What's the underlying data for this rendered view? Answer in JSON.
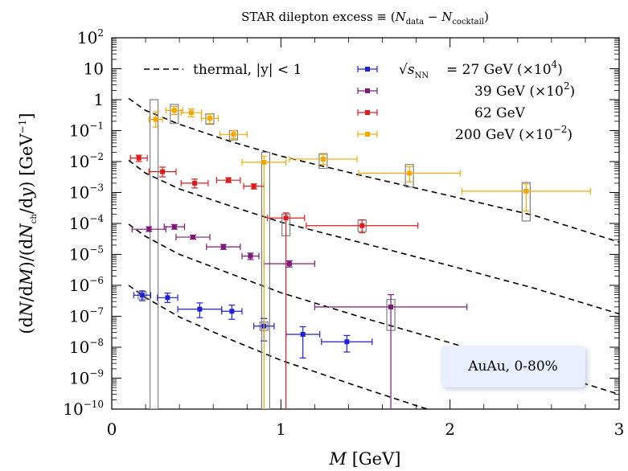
{
  "chart_data": {
    "type": "scatter",
    "title": "STAR dilepton excess ≡ (N",
    "title_parts": {
      "pre": "STAR dilepton excess ≡ (",
      "n1": "N",
      "s1": "data",
      "mid": " − ",
      "n2": "N",
      "s2": "cocktail",
      "post": ")"
    },
    "xlabel": "M  [GeV]",
    "ylabel": "(dN/dM)/(dNch/dy)  [GeV−1]",
    "xlim": [
      0,
      3
    ],
    "ylim_log10": [
      -10,
      2
    ],
    "log_y": true,
    "x_ticks": [
      "0",
      "1",
      "2",
      "3"
    ],
    "y_ticks": [
      "10",
      "1"
    ],
    "y_tick_exponents": [
      "2",
      "",
      "",
      "-1",
      "-2",
      "-3",
      "-4",
      "-5",
      "-6",
      "-7",
      "-8",
      "-9",
      "-10"
    ],
    "legend_position": "top-right",
    "thermal_label": "thermal, |y| < 1",
    "annotation": "AuAu, 0-80%",
    "colors": {
      "27": "#1f1fd6",
      "39": "#7b1a7b",
      "62": "#e01b1b",
      "200": "#f5a700",
      "model": "#000000",
      "box": "#7f7f7f"
    },
    "series": [
      {
        "name": "√sNN = 27 GeV (×10^4)",
        "legend_label": "= 27 GeV (×10",
        "legend_exp": "4",
        "color": "#1f1fd6",
        "points": [
          {
            "x": 0.18,
            "xerr": 0.05,
            "y": 4.8e-07,
            "ylo": 3.2e-07,
            "yhi": 6.6e-07
          },
          {
            "x": 0.33,
            "xerr": 0.06,
            "y": 4e-07,
            "ylo": 2.8e-07,
            "yhi": 5.6e-07
          },
          {
            "x": 0.52,
            "xerr": 0.13,
            "y": 1.7e-07,
            "ylo": 9e-08,
            "yhi": 2.7e-07
          },
          {
            "x": 0.71,
            "xerr": 0.06,
            "y": 1.45e-07,
            "ylo": 8e-08,
            "yhi": 2.3e-07
          },
          {
            "x": 0.9,
            "xerr": 0.06,
            "y": 4.8e-08,
            "ylo": 1.6e-08,
            "yhi": 8.5e-08
          },
          {
            "x": 1.13,
            "xerr": 0.1,
            "y": 2.6e-08,
            "ylo": 4.5e-09,
            "yhi": 4.6e-08
          },
          {
            "x": 1.39,
            "xerr": 0.15,
            "y": 1.5e-08,
            "ylo": 7e-09,
            "yhi": 2.4e-08
          }
        ]
      },
      {
        "name": "39 GeV (×10^2)",
        "legend_label": "39 GeV (×10",
        "legend_exp": "2",
        "color": "#7b1a7b",
        "points": [
          {
            "x": 0.22,
            "xerr": 0.1,
            "y": 6.5e-05,
            "ylo": 5.5e-05,
            "yhi": 7.8e-05
          },
          {
            "x": 0.37,
            "xerr": 0.06,
            "y": 7.8e-05,
            "ylo": 6.5e-05,
            "yhi": 9.2e-05
          },
          {
            "x": 0.48,
            "xerr": 0.1,
            "y": 3.6e-05,
            "ylo": 3.1e-05,
            "yhi": 4.2e-05
          },
          {
            "x": 0.66,
            "xerr": 0.1,
            "y": 1.75e-05,
            "ylo": 1.45e-05,
            "yhi": 2.1e-05
          },
          {
            "x": 0.82,
            "xerr": 0.05,
            "y": 8.8e-06,
            "ylo": 6.8e-06,
            "yhi": 1.1e-05
          },
          {
            "x": 1.05,
            "xerr": 0.15,
            "y": 5e-06,
            "ylo": 3.9e-06,
            "yhi": 6.2e-06
          },
          {
            "x": 1.65,
            "xerr": 0.45,
            "y": 2e-07,
            "ylo": 1e-10,
            "yhi": 5e-07
          }
        ]
      },
      {
        "name": "62 GeV",
        "legend_label": "62 GeV",
        "legend_exp": "",
        "color": "#e01b1b",
        "points": [
          {
            "x": 0.16,
            "xerr": 0.05,
            "y": 0.013,
            "ylo": 0.01,
            "yhi": 0.016
          },
          {
            "x": 0.3,
            "xerr": 0.08,
            "y": 0.0047,
            "ylo": 0.0032,
            "yhi": 0.0066
          },
          {
            "x": 0.49,
            "xerr": 0.08,
            "y": 0.002,
            "ylo": 0.0014,
            "yhi": 0.0027
          },
          {
            "x": 0.69,
            "xerr": 0.07,
            "y": 0.0025,
            "ylo": 0.0021,
            "yhi": 0.003
          },
          {
            "x": 0.84,
            "xerr": 0.06,
            "y": 0.0016,
            "ylo": 0.0013,
            "yhi": 0.0019
          },
          {
            "x": 1.03,
            "xerr": 0.11,
            "y": 0.00015,
            "ylo": 1e-10,
            "yhi": 0.00022
          },
          {
            "x": 1.48,
            "xerr": 0.33,
            "y": 8.5e-05,
            "ylo": 5e-05,
            "yhi": 0.00013
          }
        ]
      },
      {
        "name": "200 GeV (×10^-2)",
        "legend_label": "200 GeV (×10",
        "legend_exp": "−2",
        "color": "#f5a700",
        "points": [
          {
            "x": 0.26,
            "xerr": 0.04,
            "y": 0.23,
            "ylo": 0.13,
            "yhi": 0.4
          },
          {
            "x": 0.37,
            "xerr": 0.05,
            "y": 0.45,
            "ylo": 0.33,
            "yhi": 0.6
          },
          {
            "x": 0.47,
            "xerr": 0.06,
            "y": 0.38,
            "ylo": 0.28,
            "yhi": 0.5
          },
          {
            "x": 0.58,
            "xerr": 0.05,
            "y": 0.25,
            "ylo": 0.17,
            "yhi": 0.34
          },
          {
            "x": 0.72,
            "xerr": 0.08,
            "y": 0.075,
            "ylo": 0.055,
            "yhi": 0.1
          },
          {
            "x": 0.9,
            "xerr": 0.13,
            "y": 0.0095,
            "ylo": 1e-10,
            "yhi": 0.015
          },
          {
            "x": 1.25,
            "xerr": 0.2,
            "y": 0.012,
            "ylo": 0.008,
            "yhi": 0.017
          },
          {
            "x": 1.76,
            "xerr": 0.3,
            "y": 0.0042,
            "ylo": 0.0022,
            "yhi": 0.0068
          },
          {
            "x": 2.45,
            "xerr": 0.38,
            "y": 0.0011,
            "ylo": 0.00025,
            "yhi": 0.0019
          }
        ]
      }
    ],
    "systematic_boxes": [
      {
        "x": 0.25,
        "ylo": 1e-10,
        "yhi": 1.0
      },
      {
        "x": 0.37,
        "ylo": 0.17,
        "yhi": 0.7
      },
      {
        "x": 0.58,
        "ylo": 0.16,
        "yhi": 0.35
      },
      {
        "x": 0.72,
        "ylo": 0.05,
        "yhi": 0.1
      },
      {
        "x": 0.91,
        "ylo": 1e-10,
        "yhi": 0.02
      },
      {
        "x": 1.03,
        "ylo": 4e-05,
        "yhi": 0.0002
      },
      {
        "x": 1.25,
        "ylo": 0.006,
        "yhi": 0.018
      },
      {
        "x": 1.48,
        "ylo": 5.5e-05,
        "yhi": 0.00013
      },
      {
        "x": 1.76,
        "ylo": 0.0015,
        "yhi": 0.008
      },
      {
        "x": 2.45,
        "ylo": 0.00012,
        "yhi": 0.0021
      },
      {
        "x": 1.65,
        "ylo": 3.5e-08,
        "yhi": 3.5e-07
      },
      {
        "x": 0.18,
        "ylo": 3.6e-07,
        "yhi": 6.2e-07
      },
      {
        "x": 0.9,
        "ylo": 3.5e-08,
        "yhi": 6.5e-08
      }
    ],
    "thermal_curves": [
      {
        "points": [
          [
            0.1,
            1.1
          ],
          [
            0.2,
            0.45
          ],
          [
            0.4,
            0.16
          ],
          [
            0.7,
            0.045
          ],
          [
            1.0,
            0.015
          ],
          [
            1.5,
            0.0033
          ],
          [
            2.0,
            0.00078
          ],
          [
            2.5,
            0.00018
          ],
          [
            3.0,
            2.5e-05
          ]
        ]
      },
      {
        "points": [
          [
            0.1,
            0.011
          ],
          [
            0.2,
            0.0042
          ],
          [
            0.4,
            0.0013
          ],
          [
            0.7,
            0.00037
          ],
          [
            1.0,
            0.00011
          ],
          [
            1.5,
            2.2e-05
          ],
          [
            2.0,
            4.3e-06
          ],
          [
            2.5,
            8e-07
          ],
          [
            3.0,
            1.2e-07
          ]
        ]
      },
      {
        "points": [
          [
            0.1,
            9.5e-05
          ],
          [
            0.2,
            3.8e-05
          ],
          [
            0.4,
            1e-05
          ],
          [
            0.7,
            2.4e-06
          ],
          [
            1.0,
            5.8e-07
          ],
          [
            1.5,
            8.5e-08
          ],
          [
            2.0,
            1.4e-08
          ],
          [
            2.5,
            2.1e-09
          ],
          [
            3.0,
            3e-10
          ]
        ]
      },
      {
        "points": [
          [
            0.1,
            1e-06
          ],
          [
            0.2,
            4e-07
          ],
          [
            0.4,
            9.5e-08
          ],
          [
            0.7,
            1.8e-08
          ],
          [
            1.0,
            3.8e-09
          ],
          [
            1.5,
            4.5e-10
          ],
          [
            1.8,
            1.3e-10
          ],
          [
            2.1,
            4e-11
          ]
        ]
      }
    ]
  }
}
